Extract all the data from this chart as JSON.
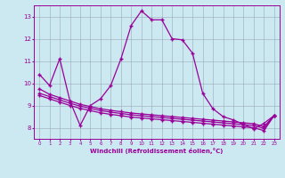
{
  "xlabel": "Windchill (Refroidissement éolien,°C)",
  "x_ticks": [
    0,
    1,
    2,
    3,
    4,
    5,
    6,
    7,
    8,
    9,
    10,
    11,
    12,
    13,
    14,
    15,
    16,
    17,
    18,
    19,
    20,
    21,
    22,
    23
  ],
  "ylim": [
    7.5,
    13.5
  ],
  "xlim": [
    -0.5,
    23.5
  ],
  "yticks": [
    8,
    9,
    10,
    11,
    12,
    13
  ],
  "background_color": "#cce8f0",
  "line_color": "#990099",
  "grid_color": "#99aabb",
  "line1_x": [
    0,
    1,
    2,
    3,
    4,
    5,
    6,
    7,
    8,
    9,
    10,
    11,
    12,
    13,
    14,
    15,
    16,
    17,
    18,
    19,
    20,
    21,
    22,
    23
  ],
  "line1_y": [
    10.4,
    9.9,
    11.1,
    9.2,
    8.1,
    9.0,
    9.3,
    9.9,
    11.1,
    12.6,
    13.25,
    12.85,
    12.85,
    12.0,
    11.95,
    11.35,
    9.55,
    8.85,
    8.5,
    8.35,
    8.15,
    7.95,
    8.2,
    8.55
  ],
  "line2_x": [
    0,
    1,
    2,
    3,
    4,
    5,
    6,
    7,
    8,
    9,
    10,
    11,
    12,
    13,
    14,
    15,
    16,
    17,
    18,
    19,
    20,
    21,
    22,
    23
  ],
  "line2_y": [
    9.75,
    9.5,
    9.35,
    9.2,
    9.05,
    8.95,
    8.85,
    8.78,
    8.72,
    8.66,
    8.62,
    8.58,
    8.54,
    8.5,
    8.46,
    8.42,
    8.38,
    8.34,
    8.3,
    8.26,
    8.22,
    8.18,
    8.05,
    8.55
  ],
  "line3_x": [
    0,
    1,
    2,
    3,
    4,
    5,
    6,
    7,
    8,
    9,
    10,
    11,
    12,
    13,
    14,
    15,
    16,
    17,
    18,
    19,
    20,
    21,
    22,
    23
  ],
  "line3_y": [
    9.55,
    9.4,
    9.25,
    9.1,
    8.97,
    8.87,
    8.77,
    8.7,
    8.64,
    8.58,
    8.54,
    8.5,
    8.46,
    8.42,
    8.38,
    8.34,
    8.3,
    8.26,
    8.22,
    8.18,
    8.14,
    8.1,
    7.97,
    8.55
  ],
  "line4_x": [
    0,
    1,
    2,
    3,
    4,
    5,
    6,
    7,
    8,
    9,
    10,
    11,
    12,
    13,
    14,
    15,
    16,
    17,
    18,
    19,
    20,
    21,
    22,
    23
  ],
  "line4_y": [
    9.45,
    9.3,
    9.15,
    9.0,
    8.87,
    8.77,
    8.67,
    8.6,
    8.54,
    8.48,
    8.44,
    8.4,
    8.36,
    8.32,
    8.28,
    8.24,
    8.2,
    8.16,
    8.12,
    8.08,
    8.04,
    8.0,
    7.87,
    8.55
  ]
}
